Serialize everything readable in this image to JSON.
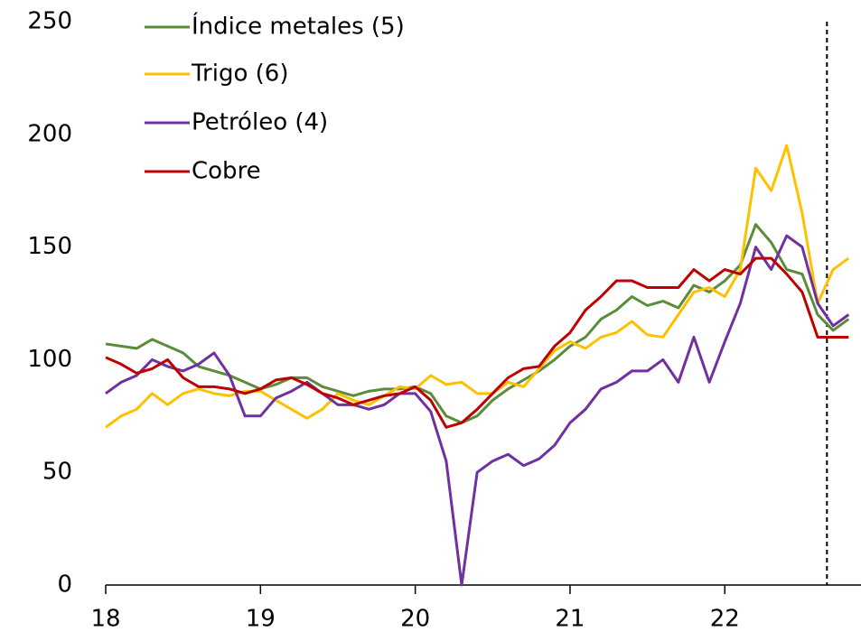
{
  "chart_data": {
    "type": "line",
    "x": [
      18.0,
      18.1,
      18.2,
      18.3,
      18.4,
      18.5,
      18.6,
      18.7,
      18.8,
      18.9,
      19.0,
      19.1,
      19.2,
      19.3,
      19.4,
      19.5,
      19.6,
      19.7,
      19.8,
      19.9,
      20.0,
      20.1,
      20.2,
      20.3,
      20.4,
      20.5,
      20.6,
      20.7,
      20.8,
      20.9,
      21.0,
      21.1,
      21.2,
      21.3,
      21.4,
      21.5,
      21.6,
      21.7,
      21.8,
      21.9,
      22.0,
      22.1,
      22.2,
      22.3,
      22.4,
      22.5,
      22.6,
      22.7,
      22.8
    ],
    "series": [
      {
        "name": "Índice metales (5)",
        "color": "#5b8c3a",
        "values": [
          107,
          106,
          105,
          109,
          106,
          103,
          97,
          95,
          93,
          90,
          87,
          89,
          92,
          92,
          88,
          86,
          84,
          86,
          87,
          87,
          88,
          85,
          75,
          72,
          75,
          82,
          87,
          91,
          95,
          100,
          106,
          110,
          118,
          122,
          128,
          124,
          126,
          123,
          133,
          130,
          135,
          142,
          160,
          152,
          140,
          138,
          120,
          113,
          118
        ]
      },
      {
        "name": "Trigo (6)",
        "color": "#ffc000",
        "values": [
          70,
          75,
          78,
          85,
          80,
          85,
          87,
          85,
          84,
          86,
          86,
          82,
          78,
          74,
          78,
          85,
          82,
          80,
          84,
          88,
          87,
          93,
          89,
          90,
          85,
          85,
          90,
          88,
          96,
          104,
          108,
          105,
          110,
          112,
          117,
          111,
          110,
          120,
          130,
          132,
          128,
          140,
          185,
          175,
          195,
          165,
          125,
          140,
          145
        ]
      },
      {
        "name": "Petróleo (4)",
        "color": "#7030a0",
        "values": [
          85,
          90,
          93,
          100,
          97,
          95,
          98,
          103,
          93,
          75,
          75,
          83,
          86,
          90,
          85,
          80,
          80,
          78,
          80,
          85,
          85,
          77,
          55,
          0,
          50,
          55,
          58,
          53,
          56,
          62,
          72,
          78,
          87,
          90,
          95,
          95,
          100,
          90,
          110,
          90,
          108,
          125,
          150,
          140,
          155,
          150,
          125,
          115,
          120
        ]
      },
      {
        "name": "Cobre",
        "color": "#c00000",
        "values": [
          101,
          98,
          94,
          96,
          100,
          92,
          88,
          88,
          87,
          85,
          87,
          91,
          92,
          89,
          85,
          83,
          80,
          82,
          84,
          85,
          88,
          82,
          70,
          72,
          78,
          85,
          92,
          96,
          97,
          106,
          112,
          122,
          128,
          135,
          135,
          132,
          132,
          132,
          140,
          135,
          140,
          138,
          145,
          145,
          138,
          130,
          110,
          110,
          110
        ]
      }
    ],
    "xlim": [
      18,
      22.88
    ],
    "xticks": [
      18,
      19,
      20,
      21,
      22
    ],
    "ylim": [
      0,
      250
    ],
    "yticks": [
      0,
      50,
      100,
      150,
      200,
      250
    ],
    "vline_x": 22.66,
    "legend": "top-left",
    "grid": false
  }
}
